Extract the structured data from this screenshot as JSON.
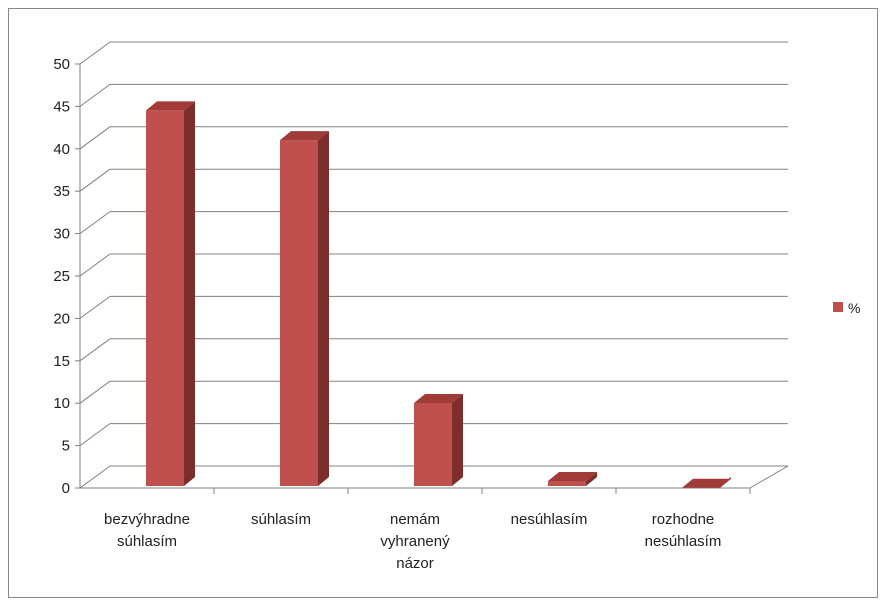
{
  "chart_data": {
    "type": "bar",
    "categories": [
      [
        "bezvýhradne",
        "súhlasím"
      ],
      [
        "súhlasím"
      ],
      [
        "nemám",
        "vyhranený",
        "názor"
      ],
      [
        "nesúhlasím"
      ],
      [
        "rozhodne",
        "nesúhlasím"
      ]
    ],
    "series": [
      {
        "name": "%",
        "values": [
          45,
          41.5,
          10.5,
          1.3,
          0.5
        ]
      }
    ],
    "ylim": [
      0,
      50
    ],
    "yticks": [
      0,
      5,
      10,
      15,
      20,
      25,
      30,
      35,
      40,
      45,
      50
    ],
    "grid": true,
    "legend": "right",
    "colors": {
      "bar_front": "#c0504d",
      "bar_side": "#7d2e2c",
      "bar_top": "#a03b38"
    }
  }
}
